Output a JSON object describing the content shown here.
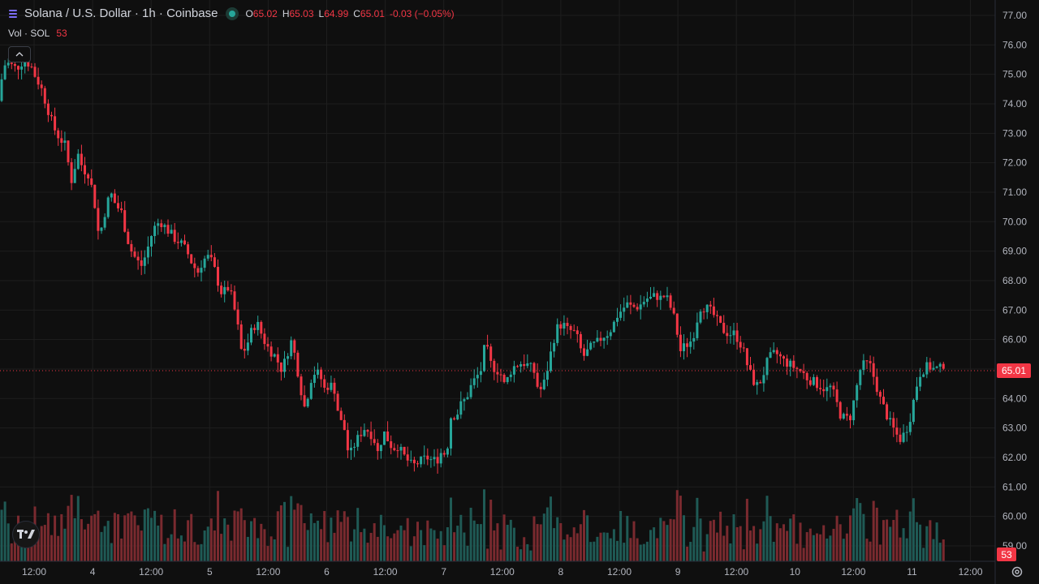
{
  "legend": {
    "symbol_title": "Solana / U.S. Dollar · 1h · Coinbase",
    "market_status_icon": "market-open-dot",
    "open_label": "O",
    "open_value": "65.02",
    "high_label": "H",
    "high_value": "65.03",
    "low_label": "L",
    "low_value": "64.99",
    "close_label": "C",
    "close_value": "65.01",
    "change_value": "-0.03 (−0.05%)"
  },
  "volume_legend": {
    "label": "Vol · SOL",
    "value": "53"
  },
  "current_price_label": "65.01",
  "current_volume_label": "53",
  "colors": {
    "up": "#26a69a",
    "down": "#f23645",
    "background": "#0f0f0f",
    "grid": "#1e1e1e",
    "volume_up": "#1f5a55",
    "volume_down": "#7a2a2f"
  },
  "chart_data": {
    "type": "candlestick",
    "symbol": "SOL/USD",
    "interval": "1h",
    "exchange": "Coinbase",
    "y_ticks": [
      "77.00",
      "76.00",
      "75.00",
      "74.00",
      "73.00",
      "72.00",
      "71.00",
      "70.00",
      "69.00",
      "68.00",
      "67.00",
      "66.00",
      "65.00",
      "64.00",
      "63.00",
      "62.00",
      "61.00",
      "60.00",
      "59.00"
    ],
    "y_range": [
      58.9,
      77.3
    ],
    "x_ticks": [
      "12:00",
      "4",
      "12:00",
      "5",
      "12:00",
      "6",
      "12:00",
      "7",
      "12:00",
      "8",
      "12:00",
      "9",
      "12:00",
      "10",
      "12:00",
      "11",
      "12:00"
    ],
    "last_price": 65.01,
    "last_volume": 53,
    "path": [
      [
        0,
        74.1
      ],
      [
        3,
        75.2
      ],
      [
        8,
        75.4
      ],
      [
        14,
        75.3
      ],
      [
        20,
        75.2
      ],
      [
        30,
        75.5
      ],
      [
        38,
        75.3
      ],
      [
        44,
        74.9
      ],
      [
        50,
        74.6
      ],
      [
        58,
        73.9
      ],
      [
        66,
        73.2
      ],
      [
        72,
        72.9
      ],
      [
        80,
        72.6
      ],
      [
        88,
        71.4
      ],
      [
        96,
        72.3
      ],
      [
        102,
        71.8
      ],
      [
        110,
        71.6
      ],
      [
        118,
        70.4
      ],
      [
        122,
        69.4
      ],
      [
        128,
        70.2
      ],
      [
        136,
        71.0
      ],
      [
        142,
        70.6
      ],
      [
        150,
        70.3
      ],
      [
        156,
        69.5
      ],
      [
        162,
        69.0
      ],
      [
        168,
        68.7
      ],
      [
        174,
        68.5
      ],
      [
        180,
        68.9
      ],
      [
        186,
        69.5
      ],
      [
        192,
        69.9
      ],
      [
        198,
        70.0
      ],
      [
        204,
        69.8
      ],
      [
        210,
        69.6
      ],
      [
        216,
        69.4
      ],
      [
        222,
        69.3
      ],
      [
        230,
        69.0
      ],
      [
        238,
        68.5
      ],
      [
        244,
        68.3
      ],
      [
        250,
        68.7
      ],
      [
        256,
        68.8
      ],
      [
        262,
        68.6
      ],
      [
        268,
        68.0
      ],
      [
        274,
        67.5
      ],
      [
        280,
        67.8
      ],
      [
        286,
        67.4
      ],
      [
        292,
        66.6
      ],
      [
        298,
        65.5
      ],
      [
        304,
        65.8
      ],
      [
        310,
        66.3
      ],
      [
        316,
        66.6
      ],
      [
        322,
        66.2
      ],
      [
        328,
        65.8
      ],
      [
        334,
        65.6
      ],
      [
        340,
        65.4
      ],
      [
        346,
        65.0
      ],
      [
        352,
        65.3
      ],
      [
        358,
        66.0
      ],
      [
        364,
        65.4
      ],
      [
        370,
        64.4
      ],
      [
        376,
        63.6
      ],
      [
        382,
        64.6
      ],
      [
        388,
        64.9
      ],
      [
        394,
        64.8
      ],
      [
        400,
        64.3
      ],
      [
        406,
        64.5
      ],
      [
        412,
        64.3
      ],
      [
        418,
        63.3
      ],
      [
        424,
        63.0
      ],
      [
        430,
        62.0
      ],
      [
        436,
        62.4
      ],
      [
        442,
        62.7
      ],
      [
        448,
        63.0
      ],
      [
        454,
        62.9
      ],
      [
        460,
        62.7
      ],
      [
        466,
        62.1
      ],
      [
        472,
        62.9
      ],
      [
        478,
        62.6
      ],
      [
        484,
        62.3
      ],
      [
        490,
        62.4
      ],
      [
        496,
        62.1
      ],
      [
        502,
        61.9
      ],
      [
        508,
        61.7
      ],
      [
        514,
        61.8
      ],
      [
        520,
        61.9
      ],
      [
        526,
        62.0
      ],
      [
        532,
        61.9
      ],
      [
        538,
        61.9
      ],
      [
        544,
        62.2
      ],
      [
        550,
        62.1
      ],
      [
        556,
        63.5
      ],
      [
        562,
        63.4
      ],
      [
        568,
        63.8
      ],
      [
        574,
        64.0
      ],
      [
        580,
        64.4
      ],
      [
        586,
        64.7
      ],
      [
        592,
        64.9
      ],
      [
        598,
        65.9
      ],
      [
        604,
        65.2
      ],
      [
        610,
        65.0
      ],
      [
        616,
        64.9
      ],
      [
        622,
        64.4
      ],
      [
        628,
        64.9
      ],
      [
        634,
        65.1
      ],
      [
        640,
        65.2
      ],
      [
        646,
        65.2
      ],
      [
        652,
        65.1
      ],
      [
        658,
        64.9
      ],
      [
        664,
        64.2
      ],
      [
        670,
        64.5
      ],
      [
        676,
        65.2
      ],
      [
        682,
        66.0
      ],
      [
        688,
        66.5
      ],
      [
        694,
        66.5
      ],
      [
        700,
        66.3
      ],
      [
        706,
        66.3
      ],
      [
        712,
        66.0
      ],
      [
        718,
        65.4
      ],
      [
        724,
        65.6
      ],
      [
        730,
        65.8
      ],
      [
        736,
        65.9
      ],
      [
        742,
        66.1
      ],
      [
        748,
        66.2
      ],
      [
        754,
        66.4
      ],
      [
        760,
        66.8
      ],
      [
        766,
        67.0
      ],
      [
        772,
        67.2
      ],
      [
        778,
        67.1
      ],
      [
        784,
        67.1
      ],
      [
        790,
        67.2
      ],
      [
        796,
        67.4
      ],
      [
        802,
        67.4
      ],
      [
        808,
        67.5
      ],
      [
        814,
        67.4
      ],
      [
        820,
        67.5
      ],
      [
        826,
        67.1
      ],
      [
        832,
        66.6
      ],
      [
        838,
        65.6
      ],
      [
        844,
        65.8
      ],
      [
        850,
        65.9
      ],
      [
        856,
        66.3
      ],
      [
        862,
        67.1
      ],
      [
        868,
        67.1
      ],
      [
        874,
        67.0
      ],
      [
        880,
        66.8
      ],
      [
        886,
        66.5
      ],
      [
        892,
        66.3
      ],
      [
        898,
        66.2
      ],
      [
        904,
        66.2
      ],
      [
        910,
        66.0
      ],
      [
        916,
        65.6
      ],
      [
        922,
        65.0
      ],
      [
        928,
        64.6
      ],
      [
        934,
        64.4
      ],
      [
        940,
        64.8
      ],
      [
        946,
        65.3
      ],
      [
        952,
        65.5
      ],
      [
        958,
        65.5
      ],
      [
        964,
        65.3
      ],
      [
        970,
        65.2
      ],
      [
        976,
        65.1
      ],
      [
        982,
        65.0
      ],
      [
        988,
        64.9
      ],
      [
        994,
        64.7
      ],
      [
        1000,
        64.6
      ],
      [
        1006,
        64.5
      ],
      [
        1012,
        64.4
      ],
      [
        1018,
        64.3
      ],
      [
        1024,
        64.4
      ],
      [
        1030,
        63.9
      ],
      [
        1036,
        63.4
      ],
      [
        1042,
        63.3
      ],
      [
        1048,
        63.4
      ],
      [
        1054,
        64.2
      ],
      [
        1060,
        65.0
      ],
      [
        1066,
        65.2
      ],
      [
        1072,
        65.1
      ],
      [
        1078,
        64.6
      ],
      [
        1084,
        64.0
      ],
      [
        1090,
        63.6
      ],
      [
        1096,
        63.2
      ],
      [
        1102,
        62.9
      ],
      [
        1108,
        62.6
      ],
      [
        1114,
        62.8
      ],
      [
        1120,
        63.2
      ],
      [
        1126,
        64.0
      ],
      [
        1132,
        64.8
      ],
      [
        1138,
        65.0
      ],
      [
        1144,
        65.1
      ],
      [
        1150,
        65.0
      ],
      [
        1156,
        65.01
      ],
      [
        1162,
        65.01
      ]
    ]
  }
}
